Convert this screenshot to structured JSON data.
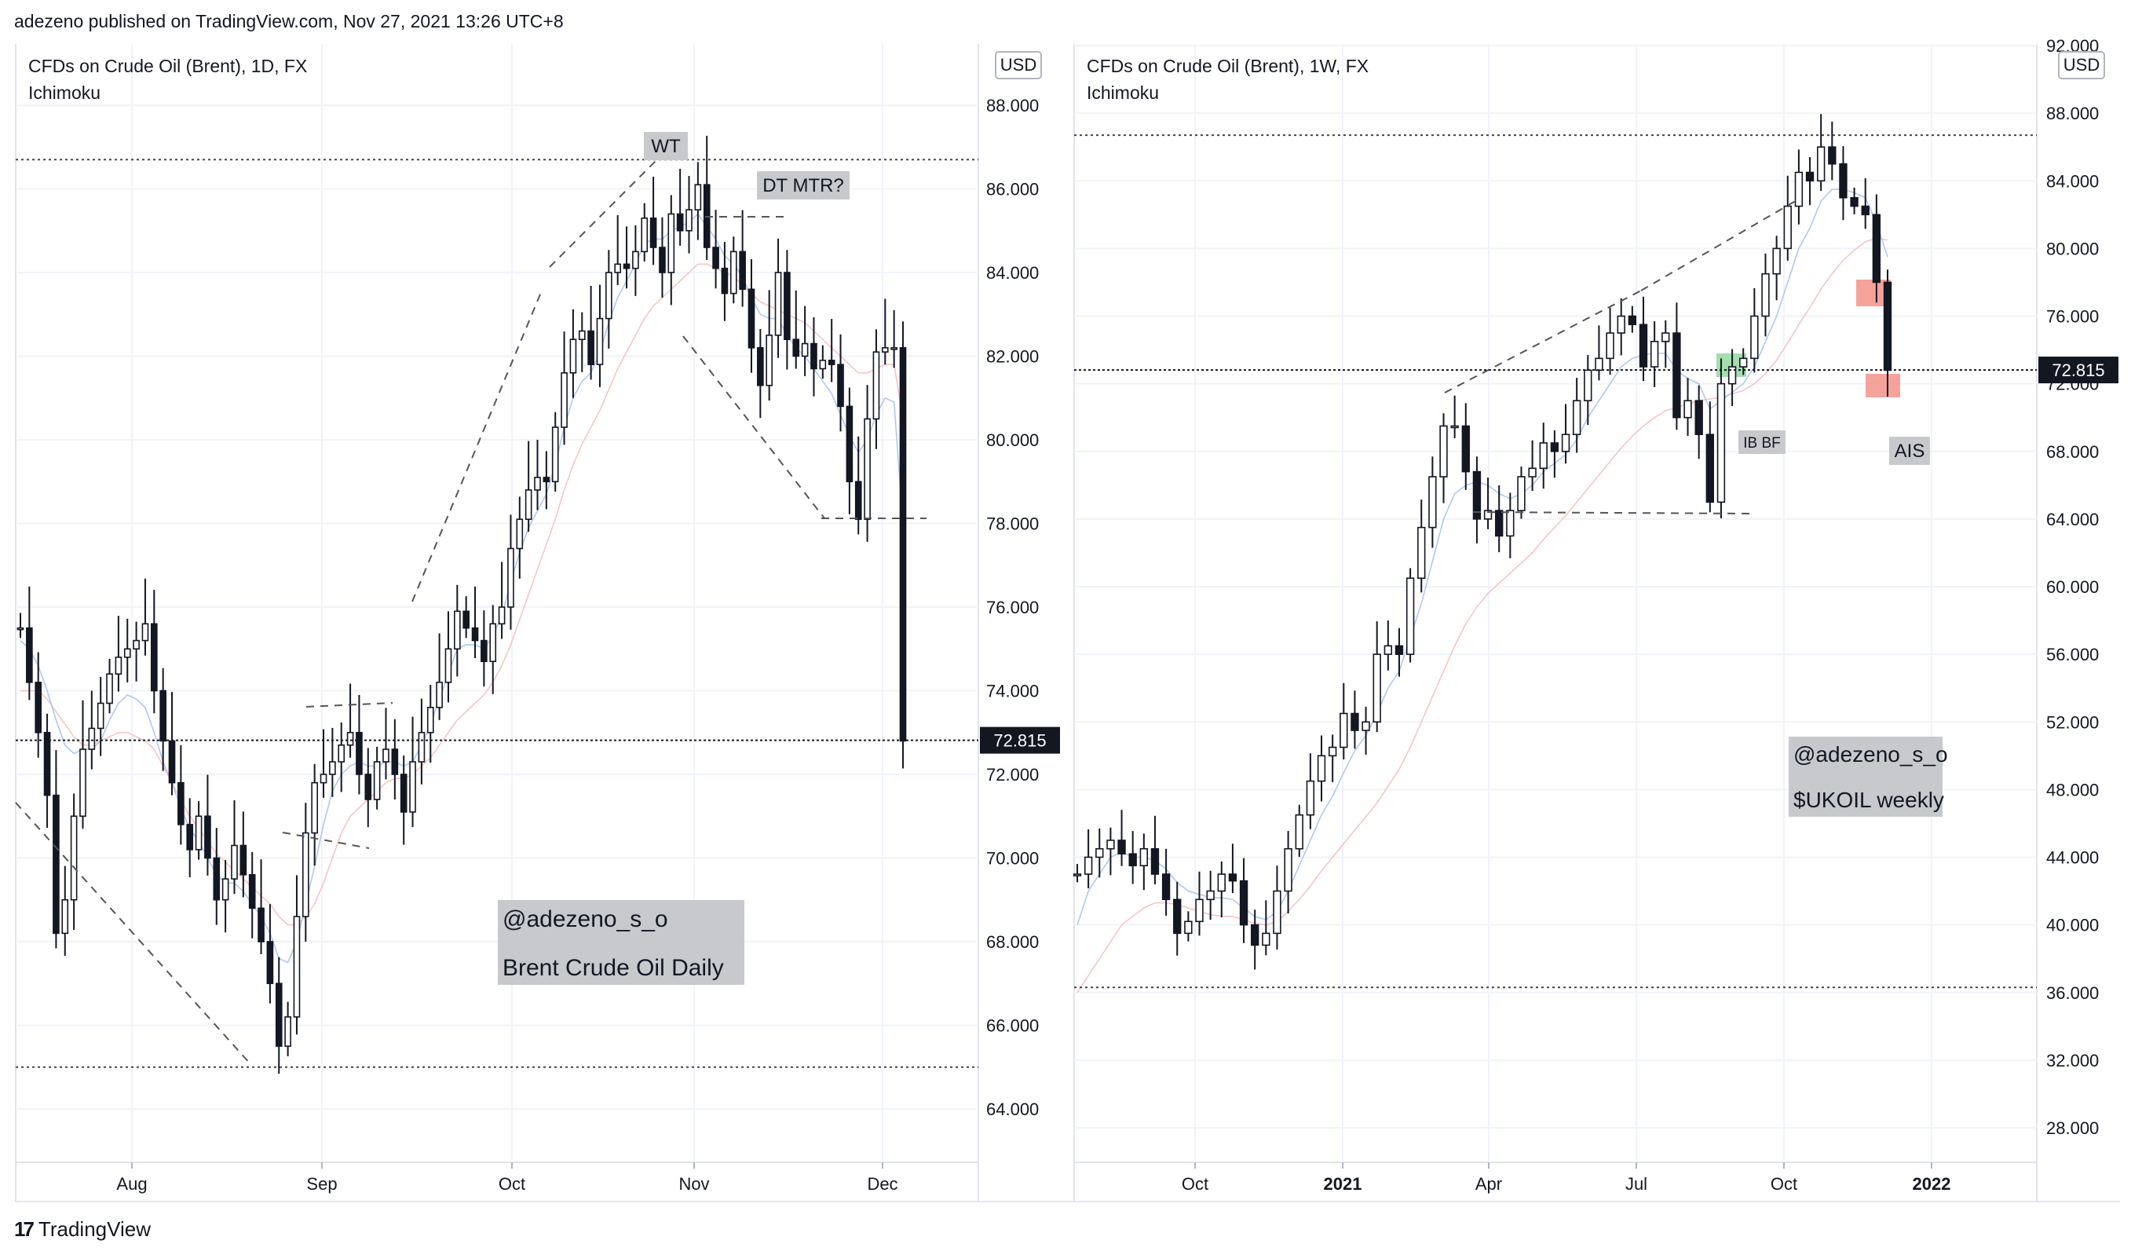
{
  "header": {
    "published": "adezeno published on TradingView.com, Nov 27, 2021 13:26 UTC+8"
  },
  "footer": {
    "logo_glyph": "17",
    "brand": "TradingView"
  },
  "chart_data": [
    {
      "type": "candlestick",
      "symbol_line": "CFDs on Crude Oil (Brent), 1D, FX",
      "indicator": "Ichimoku",
      "currency": "USD",
      "last_price": 72.815,
      "last_price_label": "72.815",
      "y_ticks": [
        64,
        66,
        68,
        70,
        72,
        74,
        76,
        78,
        80,
        82,
        84,
        86,
        88
      ],
      "y_tick_labels": [
        "64.000",
        "66.000",
        "68.000",
        "70.000",
        "72.000",
        "74.000",
        "76.000",
        "78.000",
        "80.000",
        "82.000",
        "84.000",
        "86.000",
        "88.000"
      ],
      "x_labels": [
        "Aug",
        "Sep",
        "Oct",
        "Nov",
        "Dec"
      ],
      "high_line": 86.7,
      "low_line": 65.0,
      "annotations": [
        "WT",
        "DT MTR?"
      ],
      "watermark": [
        "@adezeno_s_o",
        "Brent Crude Oil Daily"
      ],
      "closes": [
        75.5,
        74.2,
        73.0,
        71.5,
        68.2,
        69.0,
        71.0,
        72.6,
        73.1,
        73.7,
        74.4,
        74.8,
        75.0,
        75.2,
        75.6,
        74.0,
        72.8,
        71.8,
        70.8,
        70.2,
        71.0,
        70.0,
        69.0,
        69.5,
        70.3,
        69.6,
        68.8,
        68.0,
        67.0,
        65.5,
        66.2,
        68.6,
        70.6,
        71.8,
        72.0,
        72.3,
        72.7,
        73.0,
        72.0,
        71.4,
        72.3,
        72.6,
        72.0,
        71.1,
        72.3,
        73.0,
        73.6,
        74.2,
        75.0,
        75.9,
        75.5,
        75.2,
        74.7,
        75.6,
        76.0,
        77.4,
        78.1,
        78.8,
        79.1,
        79.0,
        80.3,
        81.6,
        82.4,
        82.6,
        81.8,
        82.9,
        84.0,
        84.2,
        84.1,
        84.5,
        85.3,
        84.6,
        84.0,
        85.4,
        85.0,
        85.5,
        86.1,
        84.6,
        84.1,
        83.5,
        84.5,
        83.6,
        82.2,
        81.3,
        82.5,
        84.0,
        82.4,
        82.0,
        82.3,
        81.7,
        81.9,
        81.8,
        80.8,
        79.0,
        78.1,
        80.5,
        82.1,
        82.2,
        82.2,
        72.8
      ],
      "ichimoku": {
        "tenkan": [
          75.2,
          75.0,
          74.6,
          74.0,
          73.3,
          72.7,
          72.5,
          72.6,
          72.6,
          72.8,
          73.3,
          73.7,
          73.9,
          73.8,
          73.6,
          73.0,
          72.3,
          71.8,
          71.2,
          70.7,
          70.4,
          70.0,
          69.6,
          69.4,
          69.4,
          69.2,
          68.9,
          68.6,
          68.2,
          67.6,
          67.5,
          68.0,
          68.9,
          69.8,
          70.8,
          71.6,
          72.0,
          72.2,
          72.3,
          72.2,
          72.2,
          72.3,
          72.3,
          72.2,
          72.3,
          72.7,
          73.2,
          73.8,
          74.4,
          75.0,
          75.1,
          75.1,
          75.0,
          75.3,
          75.8,
          76.6,
          77.3,
          77.9,
          78.3,
          78.7,
          79.4,
          80.3,
          81.0,
          81.4,
          81.6,
          82.1,
          82.8,
          83.4,
          83.8,
          84.2,
          84.7,
          84.8,
          84.8,
          85.0,
          85.1,
          85.2,
          85.4,
          85.1,
          84.8,
          84.4,
          84.2,
          83.9,
          83.4,
          83.0,
          82.9,
          82.9,
          82.5,
          82.2,
          82.0,
          81.7,
          81.4,
          81.1,
          80.6,
          80.1,
          79.7,
          80.0,
          80.6,
          81.0,
          80.9,
          78.0
        ],
        "kijun": [
          74.0,
          74.0,
          74.0,
          73.8,
          73.5,
          73.2,
          72.9,
          72.7,
          72.7,
          72.8,
          72.9,
          73.0,
          73.0,
          72.9,
          72.8,
          72.6,
          72.2,
          71.8,
          71.4,
          71.0,
          70.7,
          70.4,
          70.1,
          69.9,
          69.7,
          69.5,
          69.3,
          69.1,
          68.9,
          68.6,
          68.4,
          68.4,
          68.6,
          68.9,
          69.4,
          70.0,
          70.6,
          71.0,
          71.2,
          71.4,
          71.6,
          71.8,
          71.9,
          71.9,
          72.0,
          72.2,
          72.4,
          72.7,
          73.0,
          73.3,
          73.5,
          73.7,
          73.9,
          74.2,
          74.6,
          75.1,
          75.7,
          76.3,
          76.9,
          77.5,
          78.1,
          78.8,
          79.4,
          79.9,
          80.3,
          80.7,
          81.2,
          81.7,
          82.1,
          82.5,
          82.9,
          83.2,
          83.4,
          83.6,
          83.8,
          84.0,
          84.2,
          84.2,
          84.1,
          84.0,
          83.9,
          83.7,
          83.5,
          83.3,
          83.2,
          83.1,
          83.0,
          82.9,
          82.8,
          82.6,
          82.4,
          82.2,
          82.0,
          81.8,
          81.6,
          81.6,
          81.7,
          81.8,
          81.8,
          80.5
        ]
      }
    },
    {
      "type": "candlestick",
      "symbol_line": "CFDs on Crude Oil (Brent), 1W, FX",
      "indicator": "Ichimoku",
      "currency": "USD",
      "last_price": 72.815,
      "last_price_label": "72.815",
      "y_ticks": [
        28,
        32,
        36,
        40,
        44,
        48,
        52,
        56,
        60,
        64,
        68,
        72,
        76,
        80,
        84,
        88,
        92
      ],
      "y_tick_labels": [
        "28.000",
        "32.000",
        "36.000",
        "40.000",
        "44.000",
        "48.000",
        "52.000",
        "56.000",
        "60.000",
        "64.000",
        "68.000",
        "72.000",
        "76.000",
        "80.000",
        "84.000",
        "88.000",
        "92.000"
      ],
      "x_labels": [
        "Oct",
        "2021",
        "Apr",
        "Jul",
        "Oct",
        "2022"
      ],
      "high_line": 86.7,
      "low_line": 36.3,
      "annotations": [
        "IB BF",
        "AIS"
      ],
      "watermark": [
        "@adezeno_s_o",
        "$UKOIL weekly"
      ],
      "closes": [
        43.0,
        44.0,
        44.5,
        45.0,
        44.2,
        43.5,
        44.5,
        43.0,
        41.5,
        39.5,
        40.2,
        41.5,
        42.0,
        43.0,
        42.6,
        40.0,
        38.8,
        39.5,
        42.0,
        44.5,
        46.5,
        48.5,
        50.0,
        50.5,
        52.5,
        51.5,
        52.0,
        56.0,
        56.5,
        56.0,
        60.5,
        63.5,
        66.5,
        69.5,
        69.5,
        66.8,
        64.0,
        64.5,
        63.0,
        64.5,
        66.5,
        67.0,
        68.5,
        68.0,
        69.0,
        71.0,
        72.8,
        73.5,
        75.0,
        76.0,
        75.5,
        73.0,
        74.5,
        75.0,
        70.0,
        71.0,
        69.0,
        65.0,
        72.0,
        73.0,
        73.5,
        76.0,
        78.5,
        80.0,
        82.5,
        84.5,
        84.0,
        86.0,
        85.0,
        83.0,
        82.5,
        82.0,
        78.0,
        72.8
      ],
      "ichimoku": {
        "tenkan": [
          40.0,
          42.0,
          43.0,
          44.0,
          44.3,
          44.0,
          44.0,
          43.8,
          43.3,
          42.5,
          42.0,
          41.8,
          41.6,
          41.6,
          41.5,
          41.0,
          40.5,
          40.3,
          40.8,
          42.0,
          43.5,
          45.0,
          46.5,
          47.6,
          49.0,
          50.3,
          51.2,
          52.5,
          54.0,
          55.0,
          57.0,
          59.0,
          61.5,
          64.0,
          65.5,
          66.0,
          66.2,
          66.0,
          65.5,
          65.2,
          65.5,
          66.0,
          66.8,
          67.3,
          67.8,
          68.7,
          70.0,
          71.0,
          72.0,
          73.0,
          73.5,
          73.7,
          73.8,
          73.8,
          72.8,
          72.3,
          72.0,
          70.5,
          71.0,
          71.5,
          72.0,
          73.0,
          74.5,
          76.0,
          78.0,
          80.0,
          81.2,
          82.8,
          83.5,
          83.5,
          83.3,
          83.0,
          81.5,
          79.5
        ],
        "kijun": [
          36.0,
          37.0,
          38.0,
          39.0,
          40.0,
          40.5,
          41.0,
          41.3,
          41.3,
          41.2,
          41.0,
          40.8,
          40.6,
          40.5,
          40.5,
          40.3,
          40.1,
          40.0,
          40.2,
          40.8,
          41.5,
          42.3,
          43.2,
          44.0,
          44.8,
          45.6,
          46.4,
          47.2,
          48.2,
          49.2,
          50.5,
          52.0,
          53.5,
          55.0,
          56.5,
          57.8,
          58.8,
          59.6,
          60.2,
          60.8,
          61.4,
          62.0,
          62.8,
          63.5,
          64.2,
          65.0,
          65.8,
          66.6,
          67.4,
          68.2,
          68.9,
          69.5,
          70.0,
          70.4,
          70.6,
          70.8,
          71.0,
          71.1,
          71.2,
          71.4,
          71.6,
          72.0,
          72.6,
          73.4,
          74.4,
          75.5,
          76.5,
          77.6,
          78.5,
          79.3,
          79.9,
          80.4,
          80.6,
          80.5
        ]
      }
    }
  ]
}
